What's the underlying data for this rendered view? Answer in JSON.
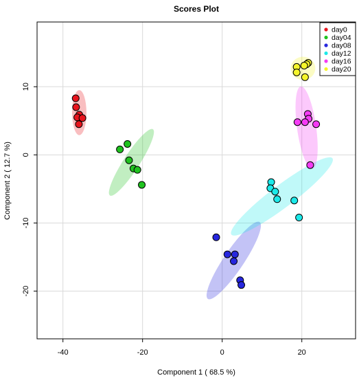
{
  "chart_data": {
    "type": "scatter",
    "title": "Scores Plot",
    "xlabel": "Component 1 ( 68.5 %)",
    "ylabel": "Component 2 ( 12.7 %)",
    "xlim": [
      -46.5,
      33.5
    ],
    "ylim": [
      -27,
      19.5
    ],
    "xticks": [
      -40,
      -20,
      0,
      20
    ],
    "yticks": [
      -20,
      -10,
      0,
      10
    ],
    "grid": true,
    "legend_position": "top-right",
    "series": [
      {
        "name": "day0",
        "color": "#E8141D",
        "points": [
          {
            "x": -36.8,
            "y": 8.3
          },
          {
            "x": -36.7,
            "y": 7.0
          },
          {
            "x": -35.9,
            "y": 5.9
          },
          {
            "x": -36.4,
            "y": 5.5
          },
          {
            "x": -35.1,
            "y": 5.4
          },
          {
            "x": -36.0,
            "y": 4.5
          }
        ],
        "ellipse": {
          "cx": -35.9,
          "cy": 6.2,
          "rx": 1.8,
          "ry": 3.3,
          "angle": 0
        }
      },
      {
        "name": "day04",
        "color": "#1FC21F",
        "points": [
          {
            "x": -25.7,
            "y": 0.8
          },
          {
            "x": -23.8,
            "y": 1.6
          },
          {
            "x": -23.4,
            "y": -0.8
          },
          {
            "x": -22.3,
            "y": -2.0
          },
          {
            "x": -21.3,
            "y": -2.2
          },
          {
            "x": -20.2,
            "y": -4.4
          }
        ],
        "ellipse": {
          "cx": -22.8,
          "cy": -1.1,
          "rx": 2.0,
          "ry": 5.8,
          "angle": 33
        }
      },
      {
        "name": "day08",
        "color": "#2727DE",
        "points": [
          {
            "x": -1.5,
            "y": -12.1
          },
          {
            "x": 1.3,
            "y": -14.6
          },
          {
            "x": 3.2,
            "y": -14.6
          },
          {
            "x": 2.9,
            "y": -15.6
          },
          {
            "x": 4.5,
            "y": -18.4
          },
          {
            "x": 4.8,
            "y": -19.1
          }
        ],
        "ellipse": {
          "cx": 2.9,
          "cy": -15.5,
          "rx": 2.5,
          "ry": 6.8,
          "angle": 34
        }
      },
      {
        "name": "day12",
        "color": "#1CE9E9",
        "points": [
          {
            "x": 12.3,
            "y": -4.0
          },
          {
            "x": 12.1,
            "y": -4.9
          },
          {
            "x": 13.3,
            "y": -5.4
          },
          {
            "x": 13.8,
            "y": -6.5
          },
          {
            "x": 18.1,
            "y": -6.7
          },
          {
            "x": 19.3,
            "y": -9.2
          }
        ],
        "ellipse": {
          "cx": 15.0,
          "cy": -6.1,
          "rx": 2.8,
          "ry": 9.3,
          "angle": 53
        }
      },
      {
        "name": "day16",
        "color": "#F53CF5",
        "points": [
          {
            "x": 21.5,
            "y": 6.0
          },
          {
            "x": 21.7,
            "y": 5.3
          },
          {
            "x": 20.8,
            "y": 4.8
          },
          {
            "x": 18.9,
            "y": 4.8
          },
          {
            "x": 23.6,
            "y": 4.5
          },
          {
            "x": 22.1,
            "y": -1.5
          }
        ],
        "ellipse": {
          "cx": 21.2,
          "cy": 4.0,
          "rx": 2.4,
          "ry": 6.1,
          "angle": -8
        }
      },
      {
        "name": "day20",
        "color": "#F5F52A",
        "points": [
          {
            "x": 21.6,
            "y": 13.5
          },
          {
            "x": 21.2,
            "y": 13.3
          },
          {
            "x": 20.6,
            "y": 13.1
          },
          {
            "x": 18.7,
            "y": 12.9
          },
          {
            "x": 18.7,
            "y": 12.1
          },
          {
            "x": 20.8,
            "y": 11.4
          }
        ],
        "ellipse": {
          "cx": 20.3,
          "cy": 12.7,
          "rx": 3.1,
          "ry": 1.7,
          "angle": 0
        }
      }
    ]
  }
}
